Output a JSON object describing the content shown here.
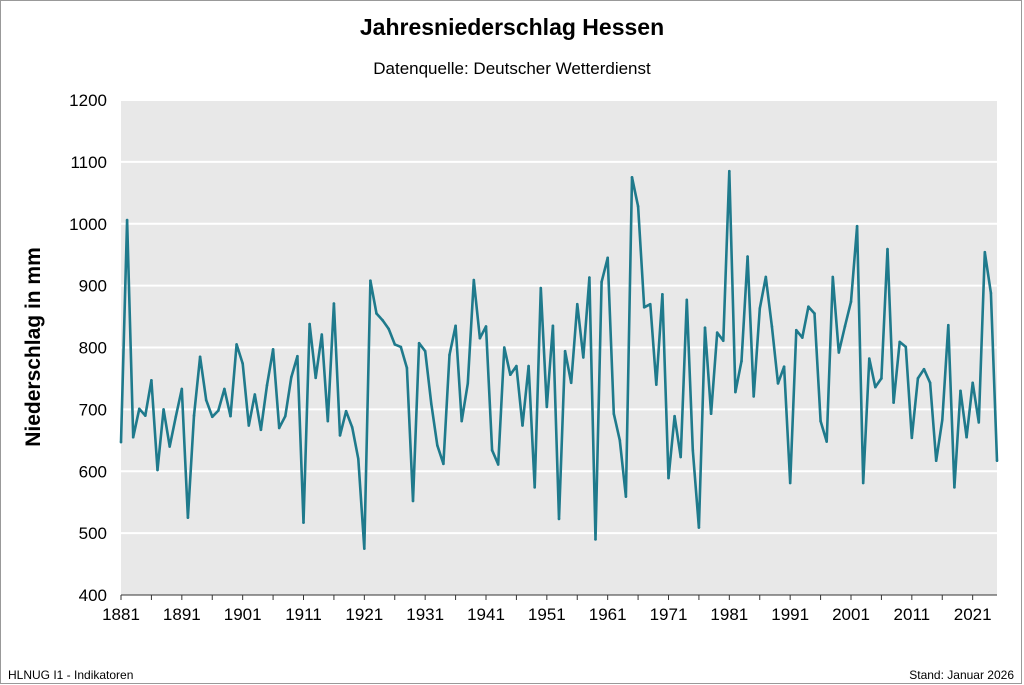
{
  "chart_data": {
    "type": "line",
    "title": "Jahresniederschlag Hessen",
    "subtitle": "Datenquelle: Deutscher Wetterdienst",
    "xlabel": "",
    "ylabel": "Niederschlag in mm",
    "ylim": [
      400,
      1200
    ],
    "xlim": [
      1881,
      2025
    ],
    "yticks": [
      "400",
      "500",
      "600",
      "700",
      "800",
      "900",
      "1000",
      "1100",
      "1200"
    ],
    "xticks": [
      "1881",
      "1891",
      "1901",
      "1911",
      "1921",
      "1931",
      "1941",
      "1951",
      "1961",
      "1971",
      "1981",
      "1991",
      "2001",
      "2011",
      "2021"
    ],
    "grid": "horizontal",
    "background": "#e8e8e8",
    "line_color": "#1f7a8c",
    "x_start": 1881,
    "values": [
      647,
      1006,
      655,
      701,
      690,
      747,
      602,
      700,
      640,
      688,
      733,
      525,
      690,
      785,
      715,
      688,
      698,
      733,
      689,
      805,
      774,
      674,
      724,
      667,
      739,
      797,
      670,
      689,
      752,
      786,
      517,
      838,
      751,
      821,
      681,
      871,
      658,
      697,
      671,
      620,
      475,
      908,
      855,
      844,
      830,
      805,
      801,
      767,
      552,
      807,
      794,
      709,
      642,
      612,
      788,
      835,
      681,
      742,
      909,
      815,
      834,
      634,
      611,
      800,
      756,
      770,
      674,
      770,
      574,
      896,
      704,
      835,
      523,
      794,
      743,
      870,
      784,
      913,
      490,
      906,
      945,
      693,
      650,
      559,
      1075,
      1028,
      865,
      870,
      740,
      886,
      589,
      689,
      623,
      877,
      634,
      509,
      832,
      693,
      824,
      811,
      1085,
      728,
      778,
      947,
      721,
      863,
      914,
      834,
      742,
      769,
      581,
      828,
      816,
      866,
      855,
      681,
      648,
      914,
      792,
      834,
      874,
      996,
      581,
      782,
      736,
      750,
      959,
      711,
      809,
      801,
      654,
      750,
      765,
      743,
      617,
      683,
      836,
      574,
      730,
      655,
      743,
      679,
      954,
      888,
      617
    ]
  },
  "footer": {
    "left": "HLNUG I1 - Indikatoren",
    "right": "Stand: Januar 2026"
  }
}
